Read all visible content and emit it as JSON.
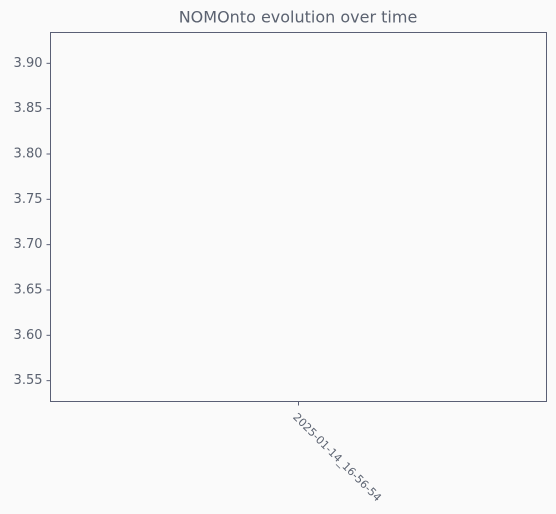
{
  "chart_data": {
    "type": "line",
    "title": "NOMOnto evolution over time",
    "categories": [
      "2025-01-14_16-56-54"
    ],
    "values": [
      null
    ],
    "color": "#1f77b4",
    "ylim": [
      3.527,
      3.934
    ],
    "yticks": [
      3.55,
      {
        "value": 3.6,
        "label": "3.60"
      },
      3.65,
      {
        "value": 3.7,
        "label": "3.70"
      },
      3.75,
      {
        "value": 3.8,
        "label": "3.80"
      },
      3.85,
      {
        "value": 3.9,
        "label": "3.90"
      }
    ]
  }
}
